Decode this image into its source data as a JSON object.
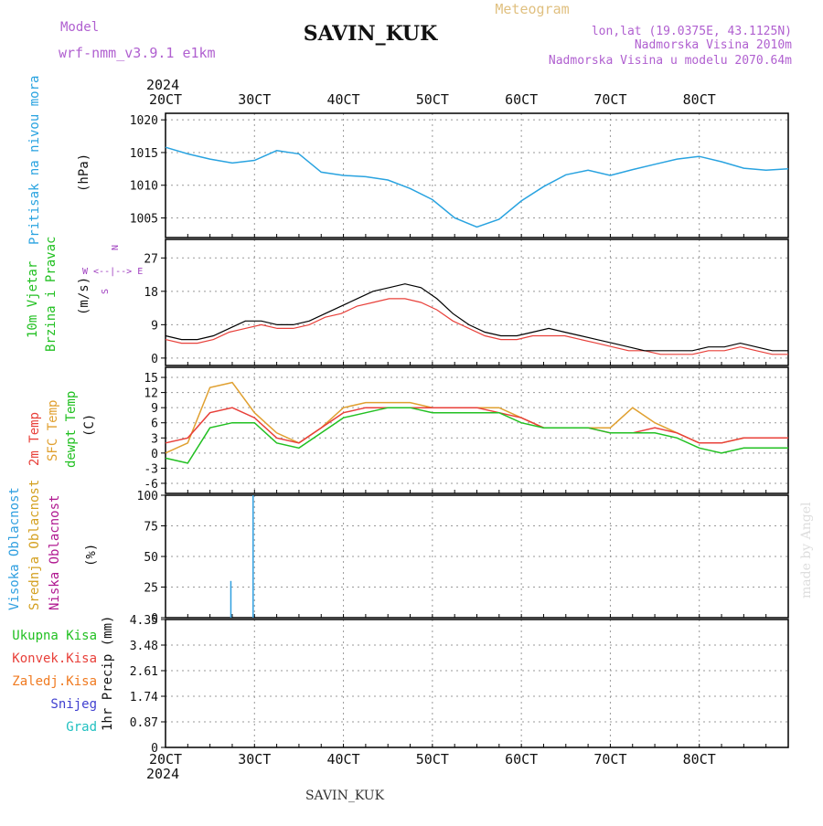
{
  "header": {
    "model_label": "Model",
    "model_name": "wrf-nmm_v3.9.1 e1km",
    "station": "SAVIN_KUK",
    "product": "Meteogram",
    "coords": "lon,lat (19.0375E, 43.1125N)",
    "elevation": "Nadmorska Visina 2010m",
    "model_elevation": "Nadmorska Visina u modelu 2070.64m"
  },
  "footer": {
    "station": "SAVIN_KUK",
    "credit": "made by Angel"
  },
  "time_axis": {
    "year": "2024",
    "labels": [
      "20CT",
      "30CT",
      "40CT",
      "50CT",
      "60CT",
      "70CT",
      "80CT"
    ]
  },
  "colors": {
    "pressure": "#29a3e0",
    "temp2m": "#e8403a",
    "sfc_temp": "#e0a030",
    "dewpt": "#22c022",
    "high_cloud": "#2f9fe0",
    "mid_cloud": "#d4a020",
    "low_cloud": "#b01890",
    "total_precip": "#22c022",
    "conv_precip": "#e8403a",
    "frozen_precip": "#f07a20",
    "snow": "#4040d0",
    "hail": "#20c0c0",
    "wind_speed": "#000000",
    "wind_gust": "#e8403a",
    "wind_legend": "#a040c0"
  },
  "chart_data": [
    {
      "type": "line",
      "panel": "pressure",
      "ylabel": "Pritisak na nivou mora",
      "unit": "(hPa)",
      "ylim": [
        1002,
        1021
      ],
      "yticks": [
        1005,
        1010,
        1015,
        1020
      ],
      "x": [
        0,
        6,
        12,
        18,
        24,
        30,
        36,
        42,
        48,
        54,
        60,
        66,
        72,
        78,
        84,
        90,
        96,
        102,
        108,
        114,
        120,
        126,
        132,
        138,
        144,
        150,
        156,
        162,
        168
      ],
      "series": [
        {
          "values": [
            1015.8,
            1014.8,
            1014.0,
            1013.4,
            1013.8,
            1015.3,
            1014.8,
            1012.0,
            1011.5,
            1011.3,
            1010.8,
            1009.5,
            1007.8,
            1005.0,
            1003.6,
            1004.8,
            1007.6,
            1009.8,
            1011.6,
            1012.3,
            1011.5,
            1012.4,
            1013.2,
            1014.0,
            1014.4,
            1013.6,
            1012.6,
            1012.3,
            1012.5
          ]
        },
        {
          "x": [
            144,
            150,
            156,
            162,
            168
          ],
          "values": [
            1014.4,
            1013.6,
            1012.6,
            1012.3,
            1012.5
          ]
        }
      ]
    },
    {
      "type": "line",
      "panel": "wind",
      "ylabel": "10m Vjetar Brzina i Pravac",
      "unit": "(m/s)",
      "ylim": [
        -2,
        32
      ],
      "yticks": [
        0,
        9,
        18,
        27
      ],
      "direction_legend": [
        "N",
        "E",
        "W",
        "S"
      ],
      "x": [
        0,
        8,
        16,
        24,
        32,
        40,
        48,
        56,
        64,
        72,
        80,
        88,
        96,
        104,
        112,
        120,
        128,
        136,
        144,
        152,
        160,
        168,
        176,
        184,
        192,
        200,
        208,
        216,
        224,
        232,
        240,
        248,
        256,
        264,
        272,
        280,
        288,
        296,
        304,
        312
      ],
      "series": [
        {
          "values": [
            6,
            5,
            5,
            6,
            8,
            10,
            10,
            9,
            9,
            10,
            12,
            14,
            16,
            18,
            19,
            20,
            19,
            16,
            12,
            9,
            7,
            6,
            6,
            7,
            8,
            7,
            6,
            5,
            4,
            3,
            2,
            2,
            2,
            2,
            3,
            3,
            4,
            3,
            2,
            2
          ]
        },
        {
          "values": [
            5,
            4,
            4,
            5,
            7,
            8,
            9,
            8,
            8,
            9,
            11,
            12,
            14,
            15,
            16,
            16,
            15,
            13,
            10,
            8,
            6,
            5,
            5,
            6,
            6,
            6,
            5,
            4,
            3,
            2,
            2,
            1,
            1,
            1,
            2,
            2,
            3,
            2,
            1,
            1
          ]
        }
      ]
    },
    {
      "type": "line",
      "panel": "temperature",
      "ylabel": [
        "2m Temp",
        "SFC Temp",
        "dewpt Temp"
      ],
      "unit": "(C)",
      "ylim": [
        -8,
        17
      ],
      "yticks": [
        -6,
        -3,
        0,
        3,
        6,
        9,
        12,
        15
      ],
      "x": [
        0,
        6,
        12,
        18,
        24,
        30,
        36,
        42,
        48,
        54,
        60,
        66,
        72,
        78,
        84,
        90,
        96,
        102,
        108,
        114,
        120,
        126,
        132,
        138,
        144,
        150,
        156,
        162,
        168
      ],
      "series": [
        {
          "values": [
            0,
            2,
            13,
            14,
            8,
            4,
            2,
            5,
            9,
            10,
            10,
            10,
            9,
            9,
            9,
            9,
            7,
            5,
            5,
            5,
            5,
            9,
            6,
            4,
            2,
            2,
            3,
            3,
            3
          ]
        },
        {
          "values": [
            2,
            3,
            8,
            9,
            7,
            3,
            2,
            5,
            8,
            9,
            9,
            9,
            9,
            9,
            9,
            8,
            7,
            5,
            5,
            5,
            4,
            4,
            5,
            4,
            2,
            2,
            3,
            3,
            3
          ]
        },
        {
          "values": [
            -1,
            -2,
            5,
            6,
            6,
            2,
            1,
            4,
            7,
            8,
            9,
            9,
            8,
            8,
            8,
            8,
            6,
            5,
            5,
            5,
            4,
            4,
            4,
            3,
            1,
            0,
            1,
            1,
            1
          ]
        }
      ]
    },
    {
      "type": "bar",
      "panel": "cloud",
      "ylabel": [
        "Visoka Oblacnost",
        "Srednja Oblacnost",
        "Niska Oblacnost"
      ],
      "unit": "(%)",
      "ylim": [
        0,
        100
      ],
      "yticks": [
        0,
        25,
        50,
        75,
        100
      ],
      "x": [
        0,
        6,
        12,
        18,
        24,
        30,
        36,
        42,
        48,
        54,
        60,
        66,
        72,
        78,
        84,
        90,
        96,
        102,
        108,
        114,
        120,
        126,
        132,
        138,
        144,
        150,
        156,
        162,
        168
      ],
      "series": [
        {
          "values": [
            0,
            0,
            0,
            30,
            100,
            0,
            0,
            0,
            0,
            0,
            0,
            0,
            0,
            0,
            0,
            0,
            0,
            0,
            0,
            0,
            0,
            0,
            0,
            0,
            0,
            0,
            0,
            0,
            0
          ]
        },
        {
          "values": [
            0,
            0,
            0,
            0,
            0,
            0,
            0,
            0,
            0,
            0,
            0,
            0,
            0,
            0,
            0,
            0,
            0,
            0,
            0,
            0,
            0,
            0,
            0,
            0,
            0,
            0,
            0,
            0,
            0
          ]
        },
        {
          "values": [
            0,
            0,
            0,
            0,
            0,
            0,
            0,
            0,
            0,
            0,
            0,
            0,
            0,
            0,
            0,
            0,
            0,
            0,
            0,
            0,
            0,
            0,
            0,
            0,
            0,
            0,
            0,
            0,
            0
          ]
        }
      ]
    },
    {
      "type": "bar",
      "panel": "precip",
      "ylabel": "1hr Precip (mm)",
      "legend": [
        "Ukupna Kisa",
        "Konvek.Kisa",
        "Zaledj.Kisa",
        "Snijeg",
        "Grad"
      ],
      "ylim": [
        0,
        4.35
      ],
      "yticks": [
        "0",
        "0.87",
        "1.74",
        "2.61",
        "3.48",
        "4.35"
      ],
      "x": [
        0,
        6,
        12,
        18,
        24,
        30,
        36,
        42,
        48,
        54,
        60,
        66,
        72,
        78,
        84,
        90,
        96,
        102,
        108,
        114,
        120,
        126,
        132,
        138,
        144,
        150,
        156,
        162,
        168
      ],
      "series": [
        {
          "values": [
            0,
            0,
            0,
            0,
            0,
            0,
            0,
            0,
            0,
            0,
            0,
            0,
            0,
            0,
            0,
            0,
            0,
            0,
            0,
            0,
            0,
            0,
            0,
            0,
            0,
            0,
            0,
            0,
            0
          ]
        },
        {
          "values": [
            0,
            0,
            0,
            0,
            0,
            0,
            0,
            0,
            0,
            0,
            0,
            0,
            0,
            0,
            0,
            0,
            0,
            0,
            0,
            0,
            0,
            0,
            0,
            0,
            0,
            0,
            0,
            0,
            0
          ]
        }
      ]
    }
  ]
}
